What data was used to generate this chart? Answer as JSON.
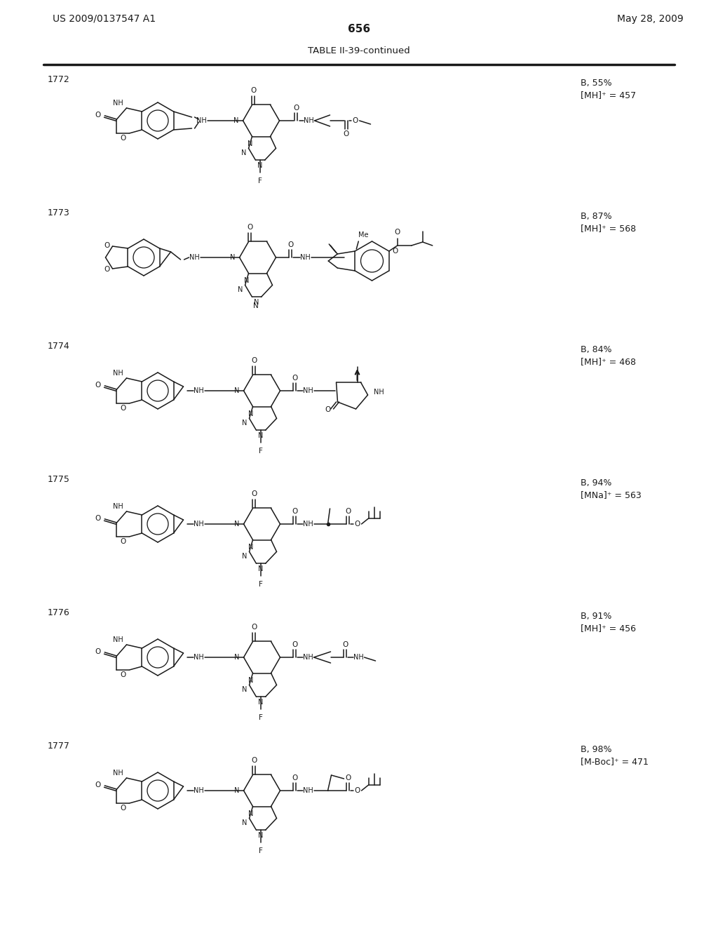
{
  "page_number": "656",
  "patent_number": "US 2009/0137547 A1",
  "patent_date": "May 28, 2009",
  "table_title": "TABLE II-39-continued",
  "bg": "#ffffff",
  "tc": "#1a1a1a",
  "rows": [
    {
      "id": "1772",
      "r1": "B, 55%",
      "r2": "[MH]⁺ = 457"
    },
    {
      "id": "1773",
      "r1": "B, 87%",
      "r2": "[MH]⁺ = 568"
    },
    {
      "id": "1774",
      "r1": "B, 84%",
      "r2": "[MH]⁺ = 468"
    },
    {
      "id": "1775",
      "r1": "B, 94%",
      "r2": "[MNa]⁺ = 563"
    },
    {
      "id": "1776",
      "r1": "B, 91%",
      "r2": "[MH]⁺ = 456"
    },
    {
      "id": "1777",
      "r1": "B, 98%",
      "r2": "[M-Boc]⁺ = 471"
    }
  ]
}
